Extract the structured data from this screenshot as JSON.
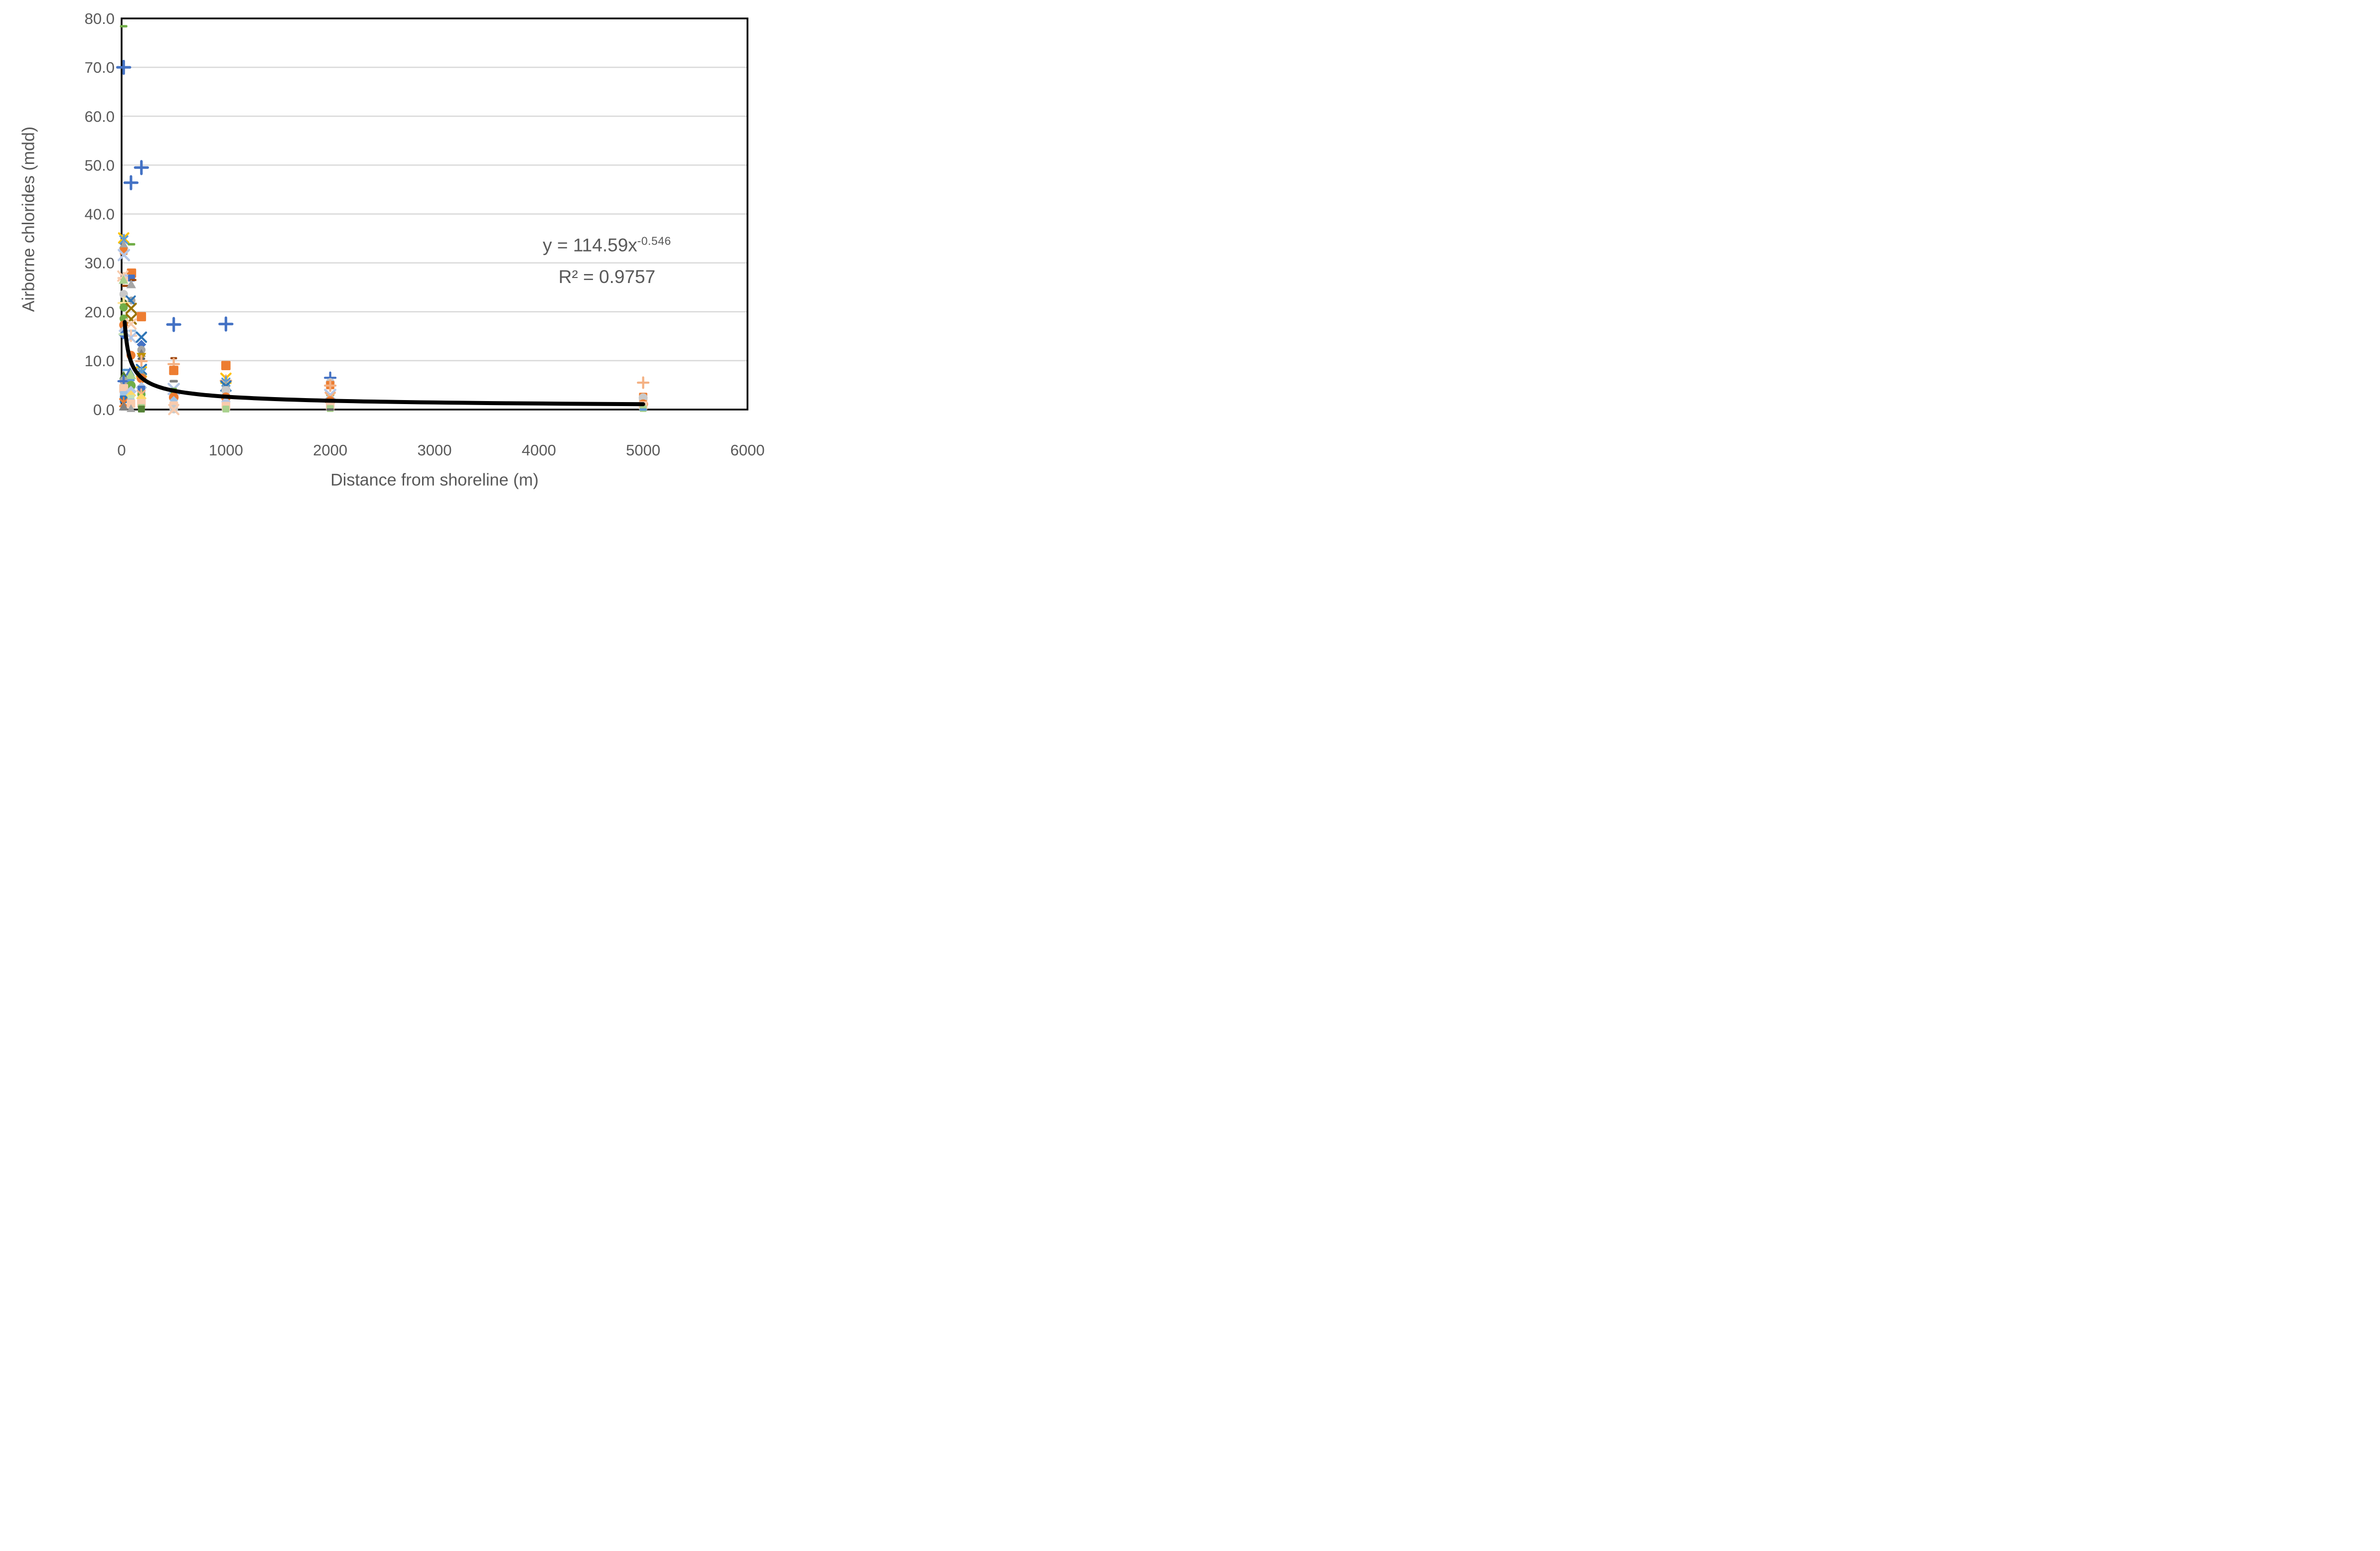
{
  "page": {
    "background": "#FFFFFF"
  },
  "chart_data": {
    "type": "scatter",
    "title": "",
    "xlabel": "Distance from shoreline (m)",
    "ylabel": "Airborne chlorides (mdd)",
    "xlim": [
      0,
      6000
    ],
    "ylim": [
      0,
      80
    ],
    "grid": "horizontal",
    "gridline_color": "#D9D9D9",
    "frame_color": "#000000",
    "tick_label_color": "#595959",
    "legend": "none",
    "xticks": [
      [
        0,
        "0"
      ],
      [
        1000,
        "1000"
      ],
      [
        2000,
        "2000"
      ],
      [
        3000,
        "3000"
      ],
      [
        4000,
        "4000"
      ],
      [
        5000,
        "5000"
      ],
      [
        6000,
        "6000"
      ]
    ],
    "yticks": [
      [
        0,
        "0.0"
      ],
      [
        10,
        "10.0"
      ],
      [
        20,
        "20.0"
      ],
      [
        30,
        "30.0"
      ],
      [
        40,
        "40.0"
      ],
      [
        50,
        "50.0"
      ],
      [
        60,
        "60.0"
      ],
      [
        70,
        "70.0"
      ],
      [
        80,
        "80.0"
      ]
    ],
    "equation": {
      "line1_prefix": "y = 114.59x",
      "line1_exponent": "-0.546",
      "line2": "R² = 0.9757",
      "color": "#595959"
    },
    "trendline": {
      "type": "power",
      "coefficient": 114.59,
      "exponent": -0.546,
      "r_squared": 0.9757,
      "x_start": 30,
      "x_end": 5000,
      "color": "#000000",
      "width": 8
    },
    "marker_shapes": [
      "dash",
      "plus",
      "x",
      "asterisk",
      "circle",
      "square",
      "triangle",
      "triangle_down",
      "diamond"
    ],
    "points": [
      [
        20,
        78.4,
        "dash",
        "#70AD47",
        1
      ],
      [
        20,
        70.0,
        "plus",
        "#4472C4",
        1.2
      ],
      [
        90,
        46.4,
        "plus",
        "#4472C4",
        1.2
      ],
      [
        190,
        49.5,
        "plus",
        "#4472C4",
        1.2
      ],
      [
        20,
        35.1,
        "x",
        "#FFC000",
        1
      ],
      [
        22,
        34.7,
        "asterisk",
        "#5B9BD5",
        1
      ],
      [
        20,
        33.7,
        "triangle",
        "#A5A5A5",
        1.1
      ],
      [
        95,
        33.8,
        "dash",
        "#70AD47",
        1
      ],
      [
        20,
        32.4,
        "square",
        "#ED7D31",
        1.1
      ],
      [
        22,
        31.6,
        "x",
        "#B4C7E7",
        1.1
      ],
      [
        95,
        27.9,
        "square",
        "#ED7D31",
        1.35
      ],
      [
        12,
        27.3,
        "x",
        "#F8CBAD",
        1
      ],
      [
        40,
        27.4,
        "dash",
        "#B4C7E7",
        1
      ],
      [
        20,
        26.9,
        "plus",
        "#F8CBAD",
        1
      ],
      [
        95,
        26.9,
        "square",
        "#4472C4",
        1
      ],
      [
        18,
        26.5,
        "triangle",
        "#A9D18E",
        1.1
      ],
      [
        110,
        26.5,
        "dash",
        "#9E480E",
        0.9
      ],
      [
        35,
        25.3,
        "dash",
        "#9E480E",
        0.9
      ],
      [
        92,
        25.6,
        "triangle",
        "#A5A5A5",
        1.1
      ],
      [
        20,
        23.6,
        "circle",
        "#C9C9C9",
        1.15
      ],
      [
        95,
        22.3,
        "circle",
        "#A5A5A5",
        1.05
      ],
      [
        88,
        22.3,
        "x",
        "#2E75B6",
        0.9
      ],
      [
        20,
        21.8,
        "circle",
        "#43682B",
        1
      ],
      [
        21,
        21.8,
        "plus",
        "#FFE699",
        1
      ],
      [
        20,
        20.9,
        "circle",
        "#70AD47",
        1.1
      ],
      [
        92,
        20.7,
        "x",
        "#997300",
        1
      ],
      [
        190,
        19.0,
        "square",
        "#ED7D31",
        1.35
      ],
      [
        20,
        18.6,
        "circle",
        "#70AD47",
        1.1
      ],
      [
        92,
        18.5,
        "x",
        "#997300",
        1
      ],
      [
        20,
        17.3,
        "circle",
        "#ED7D31",
        1.2
      ],
      [
        90,
        17.5,
        "x",
        "#F8CBAD",
        1
      ],
      [
        500,
        17.4,
        "plus",
        "#4472C4",
        1.2
      ],
      [
        1000,
        17.5,
        "plus",
        "#4472C4",
        1.2
      ],
      [
        20,
        16.1,
        "diamond",
        "#B4C7E7",
        1.1
      ],
      [
        105,
        16.1,
        "dash",
        "#9DC3E6",
        1
      ],
      [
        15,
        15.3,
        "diamond",
        "#4472C4",
        1
      ],
      [
        6,
        15.4,
        "dash",
        "#C5E0B4",
        1
      ],
      [
        90,
        15.1,
        "plus",
        "#F8CBAD",
        1
      ],
      [
        90,
        14.7,
        "x",
        "#B4C7E7",
        1
      ],
      [
        190,
        14.8,
        "x",
        "#2E75B6",
        1
      ],
      [
        190,
        13.3,
        "diamond",
        "#4472C4",
        1
      ],
      [
        190,
        12.2,
        "circle",
        "#A5A5A5",
        1.1
      ],
      [
        190,
        11.5,
        "triangle",
        "#7F7F7F",
        1
      ],
      [
        90,
        11.1,
        "circle",
        "#ED7D31",
        1.2
      ],
      [
        190,
        10.8,
        "triangle_down",
        "#BF9000",
        1.1
      ],
      [
        190,
        10.4,
        "dash",
        "#636363",
        1
      ],
      [
        190,
        9.9,
        "plus",
        "#F4B183",
        1
      ],
      [
        42,
        8.1,
        "dash",
        "#5B9BD5",
        1
      ],
      [
        80,
        7.7,
        "triangle",
        "#4472C4",
        1.1
      ],
      [
        20,
        7.0,
        "triangle",
        "#538135",
        1
      ],
      [
        88,
        7.1,
        "triangle",
        "#A9D18E",
        1.25
      ],
      [
        190,
        8.2,
        "x",
        "#2E75B6",
        1
      ],
      [
        197,
        8.2,
        "dash",
        "#9DC3E6",
        1
      ],
      [
        190,
        7.7,
        "x",
        "#FFC000",
        1
      ],
      [
        192,
        7.6,
        "asterisk",
        "#5B9BD5",
        1
      ],
      [
        190,
        6.4,
        "circle",
        "#ED7D31",
        1.3
      ],
      [
        20,
        5.9,
        "circle",
        "#A5A5A5",
        1.15
      ],
      [
        20,
        5.8,
        "plus",
        "#4472C4",
        1
      ],
      [
        90,
        6.0,
        "dash",
        "#5B9BD5",
        1
      ],
      [
        90,
        4.9,
        "circle",
        "#70AD47",
        1.25
      ],
      [
        20,
        4.3,
        "square",
        "#F8CBAD",
        1.3
      ],
      [
        90,
        3.7,
        "diamond",
        "#B4C7E7",
        1.2
      ],
      [
        190,
        4.5,
        "diamond",
        "#B4C7E7",
        1.2
      ],
      [
        190,
        4.1,
        "square",
        "#4472C4",
        1.1
      ],
      [
        20,
        3.0,
        "square",
        "#9DC3E6",
        1.1
      ],
      [
        20,
        2.1,
        "square",
        "#2E75B6",
        1.1
      ],
      [
        20,
        1.4,
        "asterisk",
        "#ED7D31",
        1
      ],
      [
        20,
        0.6,
        "triangle",
        "#808080",
        1.1
      ],
      [
        90,
        2.9,
        "diamond",
        "#FFD966",
        1.1
      ],
      [
        90,
        2.3,
        "square",
        "#C5E0B4",
        1
      ],
      [
        90,
        2.0,
        "dash",
        "#9DC3E6",
        1
      ],
      [
        90,
        1.2,
        "square",
        "#F8CBAD",
        1.25
      ],
      [
        90,
        0.2,
        "triangle",
        "#A5A5A5",
        1
      ],
      [
        190,
        3.1,
        "circle",
        "#70AD47",
        1.1
      ],
      [
        188,
        3.1,
        "asterisk",
        "#F4B183",
        1
      ],
      [
        190,
        2.3,
        "diamond",
        "#FFD966",
        1.1
      ],
      [
        190,
        1.3,
        "square",
        "#F8CBAD",
        1.25
      ],
      [
        190,
        0.4,
        "square",
        "#A9D18E",
        1
      ],
      [
        190,
        0.1,
        "square",
        "#548235",
        1
      ],
      [
        500,
        10.5,
        "dash",
        "#9E480E",
        0.9
      ],
      [
        500,
        9.3,
        "plus",
        "#F4B183",
        1
      ],
      [
        500,
        8.0,
        "square",
        "#ED7D31",
        1.35
      ],
      [
        500,
        5.8,
        "dash",
        "#808080",
        1.1
      ],
      [
        500,
        4.2,
        "x",
        "#B4C7E7",
        1.1
      ],
      [
        500,
        3.8,
        "square",
        "#70AD47",
        0.9
      ],
      [
        500,
        2.5,
        "circle",
        "#ED7D31",
        1.3
      ],
      [
        500,
        1.9,
        "diamond",
        "#9DC3E6",
        0.9
      ],
      [
        500,
        0.8,
        "square",
        "#F8CBAD",
        1.25
      ],
      [
        500,
        0.1,
        "circle",
        "#C9C9C9",
        1.15
      ],
      [
        500,
        0.0,
        "x",
        "#F8CBAD",
        1
      ],
      [
        1000,
        9.0,
        "square",
        "#ED7D31",
        1.35
      ],
      [
        1000,
        6.4,
        "x",
        "#FFC000",
        1
      ],
      [
        1000,
        5.9,
        "plus",
        "#F4B183",
        1
      ],
      [
        1000,
        5.6,
        "asterisk",
        "#5B9BD5",
        1
      ],
      [
        1000,
        5.3,
        "dash",
        "#70AD47",
        1
      ],
      [
        1000,
        5.0,
        "triangle",
        "#A5A5A5",
        1
      ],
      [
        1000,
        4.8,
        "x",
        "#2E75B6",
        1
      ],
      [
        1000,
        3.9,
        "circle",
        "#C9C9C9",
        1.2
      ],
      [
        1000,
        2.5,
        "circle",
        "#ED7D31",
        1.3
      ],
      [
        1000,
        1.6,
        "diamond",
        "#B4C7E7",
        1
      ],
      [
        1000,
        0.7,
        "square",
        "#F8CBAD",
        1.25
      ],
      [
        1000,
        0.1,
        "square",
        "#A9D18E",
        1
      ],
      [
        2000,
        6.5,
        "plus",
        "#4472C4",
        1
      ],
      [
        2000,
        5.5,
        "circle",
        "#C9C9C9",
        1.2
      ],
      [
        2000,
        5.0,
        "square",
        "#ED7D31",
        1.2
      ],
      [
        2000,
        4.9,
        "plus",
        "#F4B183",
        1
      ],
      [
        2000,
        3.0,
        "dash",
        "#70AD47",
        1.1
      ],
      [
        2000,
        3.0,
        "x",
        "#B4C7E7",
        1.1
      ],
      [
        2000,
        2.5,
        "x",
        "#F4B183",
        1
      ],
      [
        2000,
        1.7,
        "circle",
        "#ED7D31",
        1.3
      ],
      [
        2000,
        0.7,
        "square",
        "#F8CBAD",
        1.25
      ],
      [
        2000,
        0.2,
        "square",
        "#A9D18E",
        1
      ],
      [
        2000,
        0.0,
        "dash",
        "#636363",
        1
      ],
      [
        5000,
        5.5,
        "plus",
        "#F4B183",
        1
      ],
      [
        5000,
        2.6,
        "square",
        "#ED7D31",
        1.2
      ],
      [
        5000,
        2.4,
        "circle",
        "#C9C9C9",
        1.2
      ],
      [
        5000,
        1.1,
        "circle",
        "#ED7D31",
        1.3
      ],
      [
        5000,
        0.8,
        "square",
        "#F8CBAD",
        1.25
      ],
      [
        5000,
        0.2,
        "square",
        "#A9D18E",
        1
      ],
      [
        5000,
        0.0,
        "dash",
        "#5B9BD5",
        1
      ]
    ]
  }
}
